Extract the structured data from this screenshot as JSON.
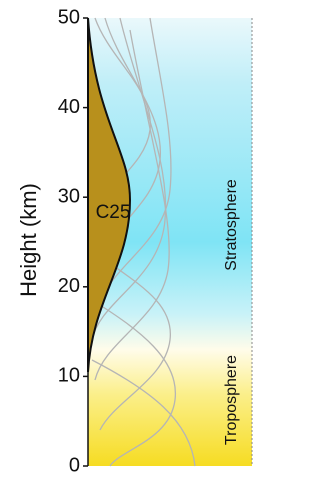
{
  "chart_data": {
    "type": "area",
    "ylabel": "Height  (km)",
    "ylim": [
      0,
      50
    ],
    "yticks": [
      0,
      10,
      20,
      30,
      40,
      50
    ],
    "annotations": [
      "C25",
      "Stratosphere",
      "Troposphere"
    ]
  }
}
